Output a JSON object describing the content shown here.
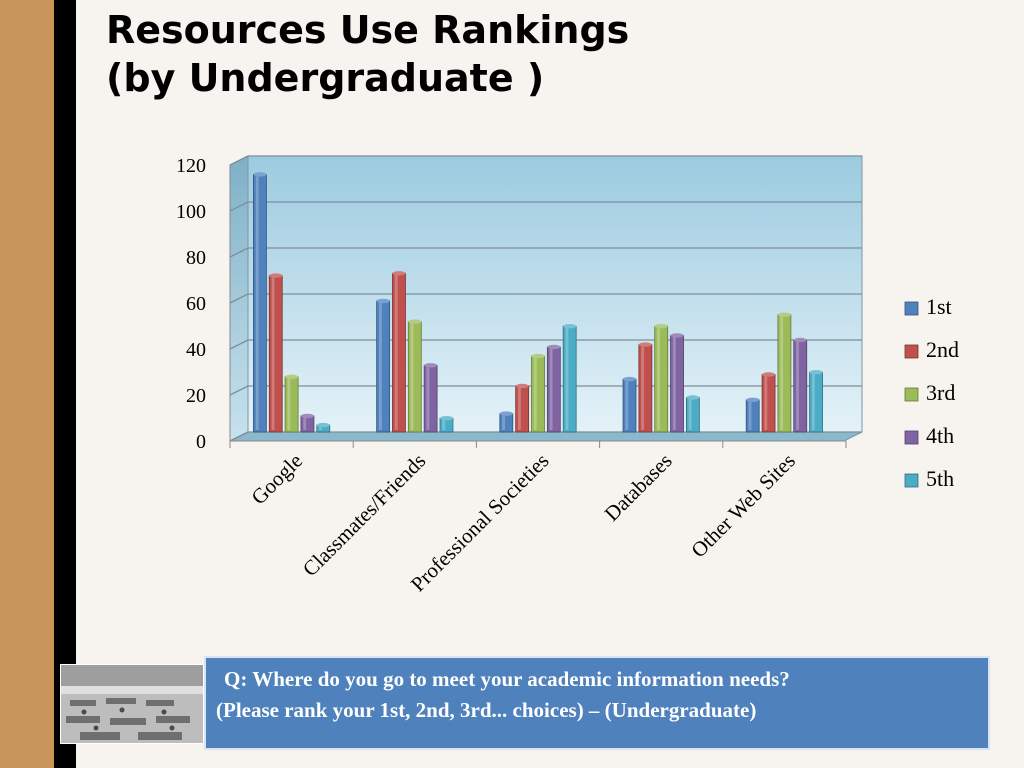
{
  "slide": {
    "title_line1": "Resources Use Rankings",
    "title_line2": "(by Undergraduate )",
    "question_line1": "Q:  Where do you go to meet your academic information needs?",
    "question_line2": "(Please rank your 1st, 2nd, 3rd... choices) – (Undergraduate)"
  },
  "colors": {
    "accent_tan": "#c8955a",
    "question_box": "#4f81bd"
  },
  "chart_data": {
    "type": "bar",
    "title": "",
    "xlabel": "",
    "ylabel": "",
    "ylim": [
      0,
      120
    ],
    "yticks": [
      0,
      20,
      40,
      60,
      80,
      100,
      120
    ],
    "grid": true,
    "legend": "right",
    "categories": [
      "Google",
      "Classmates/Friends",
      "Professional Societies",
      "Databases",
      "Other Web Sites"
    ],
    "series": [
      {
        "name": "1st",
        "color": "#4f81bd",
        "values": [
          112,
          57,
          8,
          23,
          14
        ]
      },
      {
        "name": "2nd",
        "color": "#c0504d",
        "values": [
          68,
          69,
          20,
          38,
          25
        ]
      },
      {
        "name": "3rd",
        "color": "#9bbb59",
        "values": [
          24,
          48,
          33,
          46,
          51
        ]
      },
      {
        "name": "4th",
        "color": "#8064a2",
        "values": [
          7,
          29,
          37,
          42,
          40
        ]
      },
      {
        "name": "5th",
        "color": "#4bacc6",
        "values": [
          3,
          6,
          46,
          15,
          26
        ]
      }
    ]
  }
}
